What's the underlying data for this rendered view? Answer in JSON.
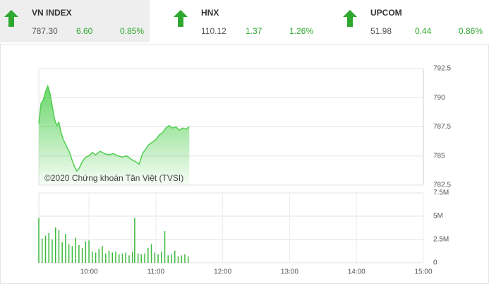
{
  "indices": [
    {
      "name": "VN INDEX",
      "value": "787.30",
      "change": "6.60",
      "percent": "0.85%"
    },
    {
      "name": "HNX",
      "value": "110.12",
      "change": "1.37",
      "percent": "1.26%"
    },
    {
      "name": "UPCOM",
      "value": "51.98",
      "change": "0.44",
      "percent": "0.86%"
    }
  ],
  "chart_data": [
    {
      "type": "area",
      "color": "#4fcf4f",
      "annotation": "©2020 Chứng khoán Tân Việt (TVSI)",
      "x": [
        555,
        557,
        559,
        561,
        563,
        565,
        567,
        569,
        571,
        573,
        575,
        577,
        579,
        581,
        583,
        585,
        587,
        589,
        591,
        594,
        597,
        600,
        603,
        606,
        610,
        614,
        618,
        622,
        626,
        630,
        634,
        638,
        642,
        645,
        648,
        651,
        654,
        657,
        660,
        663,
        666,
        669,
        672,
        675,
        678,
        681,
        684,
        687,
        690
      ],
      "values": [
        787.8,
        789.5,
        789.8,
        790.5,
        791.0,
        790.4,
        789.3,
        788.2,
        787.6,
        787.9,
        787.0,
        786.4,
        786.0,
        785.6,
        785.2,
        784.6,
        784.1,
        783.7,
        783.9,
        784.5,
        784.9,
        785.0,
        785.3,
        785.1,
        785.4,
        785.2,
        785.1,
        785.2,
        785.0,
        784.9,
        785.0,
        784.7,
        784.5,
        784.3,
        785.2,
        785.6,
        786.0,
        786.2,
        786.4,
        786.8,
        787.0,
        787.4,
        787.6,
        787.4,
        787.5,
        787.2,
        787.4,
        787.3,
        787.5
      ],
      "xlim": [
        555,
        900
      ],
      "ylim": [
        782.5,
        792.5
      ],
      "yticks": [
        782.5,
        785,
        787.5,
        790,
        792.5
      ],
      "grid": true
    },
    {
      "type": "bar",
      "color": "#3cb93c",
      "x": [
        555,
        558,
        561,
        564,
        567,
        570,
        573,
        576,
        579,
        582,
        585,
        588,
        591,
        594,
        597,
        600,
        603,
        606,
        609,
        612,
        615,
        618,
        621,
        624,
        627,
        630,
        633,
        636,
        639,
        641,
        644,
        647,
        650,
        653,
        656,
        659,
        662,
        665,
        668,
        671,
        674,
        677,
        680,
        683,
        686,
        689
      ],
      "values": [
        4.8,
        2.6,
        2.9,
        3.2,
        2.5,
        3.8,
        3.5,
        2.2,
        3.1,
        2.0,
        1.8,
        2.7,
        1.9,
        1.6,
        2.3,
        2.4,
        1.2,
        1.1,
        1.5,
        1.8,
        1.0,
        1.3,
        1.1,
        1.2,
        0.9,
        1.0,
        1.1,
        0.8,
        1.2,
        4.8,
        1.0,
        0.9,
        1.0,
        1.6,
        2.0,
        1.1,
        0.9,
        1.2,
        3.4,
        0.8,
        0.9,
        1.3,
        0.7,
        0.8,
        0.9,
        0.7
      ],
      "xlim": [
        555,
        900
      ],
      "ylim": [
        0,
        7.5
      ],
      "yticks": [
        0,
        {
          "value": 2.5,
          "label": "2.5M"
        },
        {
          "value": 5,
          "label": "5M"
        },
        {
          "value": 7.5,
          "label": "7.5M"
        }
      ],
      "xticks": [
        {
          "value": 600,
          "label": "10:00"
        },
        {
          "value": 660,
          "label": "11:00"
        },
        {
          "value": 720,
          "label": "12:00"
        },
        {
          "value": 780,
          "label": "13:00"
        },
        {
          "value": 840,
          "label": "14:00"
        },
        {
          "value": 900,
          "label": "15:00"
        }
      ],
      "grid": true
    }
  ]
}
